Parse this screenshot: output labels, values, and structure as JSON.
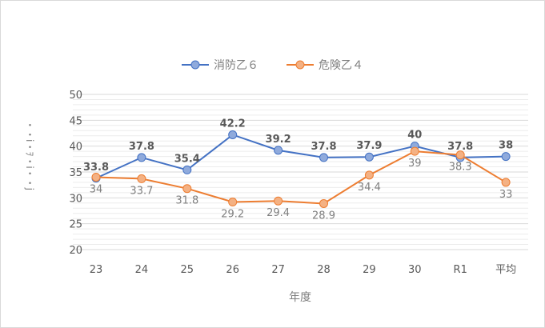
{
  "chart_data": {
    "type": "line",
    "title": "",
    "xlabel": "年度",
    "ylabel": "・・i・ｦ・i・・j",
    "categories": [
      "23",
      "24",
      "25",
      "26",
      "27",
      "28",
      "29",
      "30",
      "R1",
      "平均"
    ],
    "ylim": [
      20,
      50
    ],
    "yticks": [
      20,
      25,
      30,
      35,
      40,
      45,
      50
    ],
    "grid": true,
    "legend": "top",
    "series": [
      {
        "name": "消防乙６",
        "color": "#4472c4",
        "marker_fill": "#8faadc",
        "values": [
          33.8,
          37.8,
          35.4,
          42.2,
          39.2,
          37.8,
          37.9,
          40,
          37.8,
          38
        ]
      },
      {
        "name": "危険乙４",
        "color": "#ed7d31",
        "marker_fill": "#f4b183",
        "values": [
          34,
          33.7,
          31.8,
          29.2,
          29.4,
          28.9,
          34.4,
          39,
          38.3,
          33
        ]
      }
    ]
  }
}
